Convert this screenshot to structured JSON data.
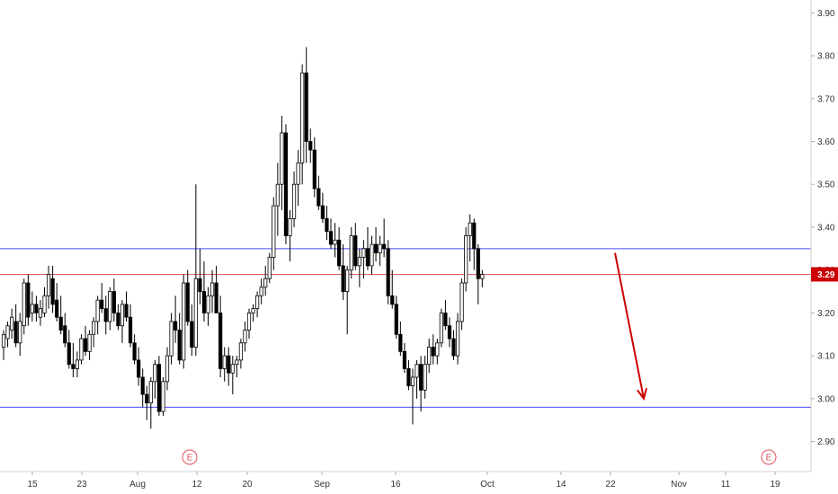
{
  "chart_data": {
    "type": "candlestick",
    "y_axis": {
      "ticks": [
        "2.90",
        "3.00",
        "3.10",
        "3.20",
        "3.30",
        "3.40",
        "3.50",
        "3.60",
        "3.70",
        "3.80",
        "3.90"
      ],
      "range": [
        2.83,
        3.93
      ],
      "position": "right"
    },
    "x_axis": {
      "ticks": [
        "15",
        "23",
        "Aug",
        "12",
        "20",
        "Sep",
        "16",
        "Oct",
        "14",
        "22",
        "Nov",
        "11",
        "19"
      ]
    },
    "last_price": {
      "label": "3.29",
      "value": 3.29,
      "color": "#cc0000"
    },
    "horizontal_lines": [
      {
        "value": 3.35,
        "color": "#4a4aff"
      },
      {
        "value": 3.29,
        "color": "#e06060"
      },
      {
        "value": 2.98,
        "color": "#4a4aff"
      }
    ],
    "event_markers": [
      {
        "label": "E",
        "date_index": 37
      },
      {
        "label": "E",
        "date_index": 165
      }
    ],
    "annotation": {
      "type": "arrow",
      "color": "#cc0000",
      "from": [
        126,
        3.34
      ],
      "to": [
        133,
        3.0
      ]
    },
    "candles": [
      [
        3.12,
        3.16,
        3.09,
        3.15
      ],
      [
        3.14,
        3.18,
        3.12,
        3.17
      ],
      [
        3.16,
        3.21,
        3.14,
        3.19
      ],
      [
        3.18,
        3.22,
        3.12,
        3.13
      ],
      [
        3.13,
        3.2,
        3.1,
        3.18
      ],
      [
        3.17,
        3.28,
        3.15,
        3.27
      ],
      [
        3.27,
        3.29,
        3.17,
        3.19
      ],
      [
        3.2,
        3.25,
        3.18,
        3.22
      ],
      [
        3.22,
        3.24,
        3.18,
        3.2
      ],
      [
        3.19,
        3.23,
        3.17,
        3.21
      ],
      [
        3.2,
        3.26,
        3.19,
        3.24
      ],
      [
        3.24,
        3.31,
        3.21,
        3.29
      ],
      [
        3.28,
        3.31,
        3.2,
        3.22
      ],
      [
        3.23,
        3.27,
        3.18,
        3.19
      ],
      [
        3.19,
        3.24,
        3.15,
        3.16
      ],
      [
        3.17,
        3.2,
        3.12,
        3.13
      ],
      [
        3.13,
        3.16,
        3.07,
        3.08
      ],
      [
        3.08,
        3.13,
        3.05,
        3.07
      ],
      [
        3.07,
        3.11,
        3.05,
        3.09
      ],
      [
        3.09,
        3.15,
        3.08,
        3.14
      ],
      [
        3.14,
        3.17,
        3.1,
        3.11
      ],
      [
        3.11,
        3.16,
        3.09,
        3.15
      ],
      [
        3.15,
        3.19,
        3.12,
        3.18
      ],
      [
        3.18,
        3.24,
        3.15,
        3.23
      ],
      [
        3.23,
        3.27,
        3.2,
        3.21
      ],
      [
        3.21,
        3.24,
        3.15,
        3.18
      ],
      [
        3.18,
        3.26,
        3.16,
        3.25
      ],
      [
        3.25,
        3.28,
        3.18,
        3.2
      ],
      [
        3.2,
        3.22,
        3.16,
        3.17
      ],
      [
        3.17,
        3.23,
        3.13,
        3.22
      ],
      [
        3.22,
        3.25,
        3.18,
        3.19
      ],
      [
        3.19,
        3.22,
        3.12,
        3.13
      ],
      [
        3.13,
        3.15,
        3.08,
        3.09
      ],
      [
        3.09,
        3.12,
        3.03,
        3.05
      ],
      [
        3.05,
        3.07,
        2.98,
        3.01
      ],
      [
        3.01,
        3.03,
        2.95,
        2.99
      ],
      [
        2.99,
        3.05,
        2.93,
        3.04
      ],
      [
        3.04,
        3.09,
        3.0,
        3.08
      ],
      [
        3.08,
        3.1,
        2.96,
        2.97
      ],
      [
        2.97,
        3.05,
        2.96,
        3.04
      ],
      [
        3.04,
        3.12,
        3.02,
        3.1
      ],
      [
        3.1,
        3.2,
        3.08,
        3.18
      ],
      [
        3.18,
        3.24,
        3.13,
        3.16
      ],
      [
        3.16,
        3.2,
        3.08,
        3.09
      ],
      [
        3.09,
        3.29,
        3.07,
        3.27
      ],
      [
        3.27,
        3.3,
        3.17,
        3.18
      ],
      [
        3.18,
        3.22,
        3.1,
        3.12
      ],
      [
        3.12,
        3.5,
        3.1,
        3.28
      ],
      [
        3.28,
        3.35,
        3.22,
        3.25
      ],
      [
        3.25,
        3.32,
        3.18,
        3.2
      ],
      [
        3.2,
        3.26,
        3.17,
        3.24
      ],
      [
        3.24,
        3.3,
        3.2,
        3.27
      ],
      [
        3.27,
        3.31,
        3.2,
        3.2
      ],
      [
        3.2,
        3.24,
        3.05,
        3.07
      ],
      [
        3.07,
        3.12,
        3.04,
        3.1
      ],
      [
        3.1,
        3.12,
        3.03,
        3.06
      ],
      [
        3.06,
        3.1,
        3.01,
        3.08
      ],
      [
        3.08,
        3.1,
        3.05,
        3.09
      ],
      [
        3.09,
        3.14,
        3.07,
        3.13
      ],
      [
        3.13,
        3.18,
        3.11,
        3.16
      ],
      [
        3.16,
        3.21,
        3.14,
        3.2
      ],
      [
        3.2,
        3.22,
        3.18,
        3.21
      ],
      [
        3.21,
        3.25,
        3.19,
        3.24
      ],
      [
        3.24,
        3.28,
        3.22,
        3.26
      ],
      [
        3.26,
        3.31,
        3.24,
        3.28
      ],
      [
        3.28,
        3.34,
        3.27,
        3.33
      ],
      [
        3.33,
        3.47,
        3.3,
        3.45
      ],
      [
        3.45,
        3.55,
        3.38,
        3.5
      ],
      [
        3.5,
        3.66,
        3.44,
        3.62
      ],
      [
        3.62,
        3.64,
        3.36,
        3.38
      ],
      [
        3.38,
        3.44,
        3.32,
        3.42
      ],
      [
        3.42,
        3.53,
        3.4,
        3.5
      ],
      [
        3.5,
        3.58,
        3.45,
        3.55
      ],
      [
        3.55,
        3.78,
        3.5,
        3.76
      ],
      [
        3.76,
        3.82,
        3.55,
        3.6
      ],
      [
        3.6,
        3.63,
        3.55,
        3.58
      ],
      [
        3.58,
        3.61,
        3.47,
        3.49
      ],
      [
        3.49,
        3.52,
        3.44,
        3.45
      ],
      [
        3.45,
        3.48,
        3.41,
        3.42
      ],
      [
        3.42,
        3.45,
        3.37,
        3.39
      ],
      [
        3.39,
        3.42,
        3.35,
        3.36
      ],
      [
        3.36,
        3.41,
        3.33,
        3.37
      ],
      [
        3.37,
        3.4,
        3.3,
        3.31
      ],
      [
        3.31,
        3.36,
        3.23,
        3.25
      ],
      [
        3.25,
        3.31,
        3.15,
        3.3
      ],
      [
        3.3,
        3.4,
        3.28,
        3.38
      ],
      [
        3.38,
        3.41,
        3.3,
        3.31
      ],
      [
        3.31,
        3.35,
        3.26,
        3.33
      ],
      [
        3.33,
        3.37,
        3.28,
        3.35
      ],
      [
        3.35,
        3.4,
        3.3,
        3.31
      ],
      [
        3.31,
        3.38,
        3.29,
        3.36
      ],
      [
        3.36,
        3.4,
        3.32,
        3.34
      ],
      [
        3.34,
        3.38,
        3.31,
        3.36
      ],
      [
        3.36,
        3.42,
        3.33,
        3.35
      ],
      [
        3.35,
        3.37,
        3.22,
        3.24
      ],
      [
        3.24,
        3.3,
        3.21,
        3.22
      ],
      [
        3.22,
        3.24,
        3.14,
        3.15
      ],
      [
        3.15,
        3.18,
        3.1,
        3.11
      ],
      [
        3.11,
        3.13,
        3.06,
        3.07
      ],
      [
        3.07,
        3.09,
        3.02,
        3.03
      ],
      [
        3.03,
        3.07,
        2.94,
        3.05
      ],
      [
        3.05,
        3.09,
        3.0,
        3.08
      ],
      [
        3.08,
        3.1,
        2.97,
        3.02
      ],
      [
        3.02,
        3.1,
        3.0,
        3.08
      ],
      [
        3.08,
        3.14,
        3.06,
        3.12
      ],
      [
        3.12,
        3.15,
        3.08,
        3.1
      ],
      [
        3.1,
        3.14,
        3.08,
        3.13
      ],
      [
        3.13,
        3.21,
        3.12,
        3.2
      ],
      [
        3.2,
        3.23,
        3.16,
        3.17
      ],
      [
        3.17,
        3.19,
        3.12,
        3.14
      ],
      [
        3.14,
        3.16,
        3.09,
        3.1
      ],
      [
        3.1,
        3.2,
        3.08,
        3.18
      ],
      [
        3.18,
        3.28,
        3.16,
        3.27
      ],
      [
        3.27,
        3.4,
        3.25,
        3.38
      ],
      [
        3.38,
        3.43,
        3.32,
        3.41
      ],
      [
        3.41,
        3.42,
        3.3,
        3.35
      ],
      [
        3.35,
        3.36,
        3.22,
        3.28
      ],
      [
        3.28,
        3.3,
        3.26,
        3.29
      ]
    ]
  }
}
